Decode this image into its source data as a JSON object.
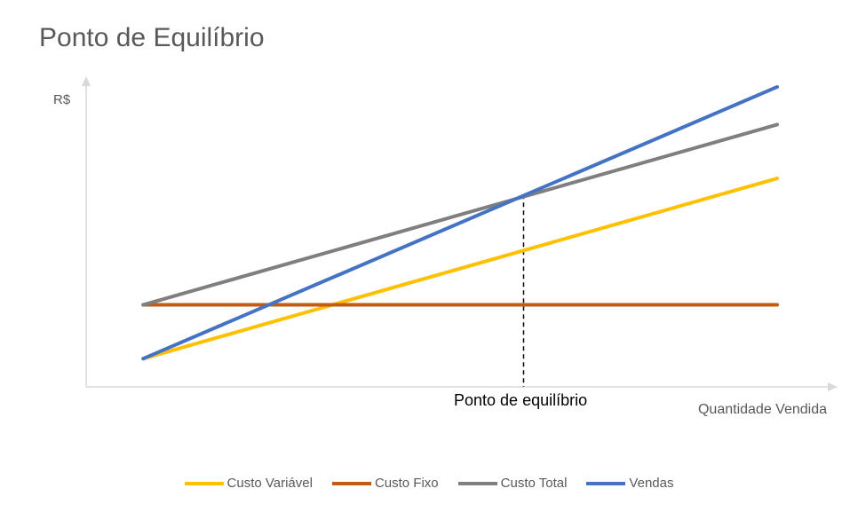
{
  "chart_data": {
    "type": "line",
    "title": "Ponto de Equilíbrio",
    "xlabel": "Quantidade Vendida",
    "ylabel": "R$",
    "x": [
      0,
      100
    ],
    "xlim": [
      -9,
      100
    ],
    "ylim": [
      -10.5,
      100
    ],
    "series": [
      {
        "name": "Custo Variável",
        "values": [
          0,
          67
        ],
        "color": "#FFC000"
      },
      {
        "name": "Custo Fixo",
        "values": [
          20,
          20
        ],
        "color": "#C55A11"
      },
      {
        "name": "Custo Total",
        "values": [
          20,
          87
        ],
        "color": "#7F7F7F"
      },
      {
        "name": "Vendas",
        "values": [
          0,
          101
        ],
        "color": "#4472C4"
      }
    ],
    "annotation": {
      "text": "Ponto de equilíbrio",
      "x": 60,
      "y": 61
    },
    "grid": false,
    "legend": "bottom"
  }
}
